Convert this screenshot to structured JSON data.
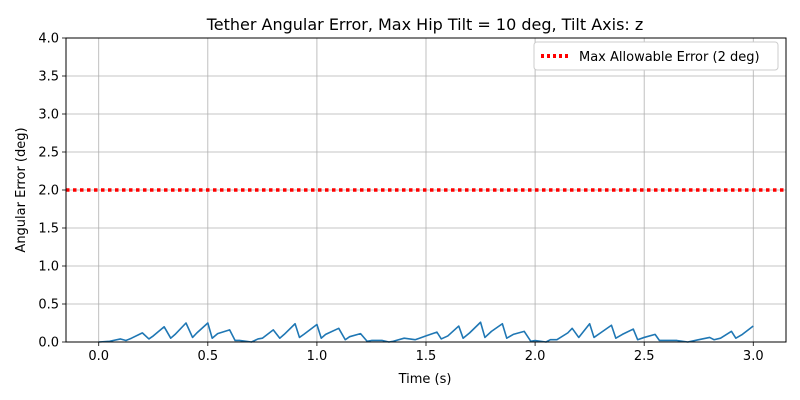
{
  "chart_data": {
    "type": "line",
    "title": "Tether Angular Error, Max Hip Tilt = 10 deg, Tilt Axis: z",
    "xlabel": "Time (s)",
    "ylabel": "Angular Error (deg)",
    "xlim": [
      -0.15,
      3.15
    ],
    "ylim": [
      0,
      4.0
    ],
    "xticks": [
      0.0,
      0.5,
      1.0,
      1.5,
      2.0,
      2.5,
      3.0
    ],
    "xtick_labels": [
      "0.0",
      "0.5",
      "1.0",
      "1.5",
      "2.0",
      "2.5",
      "3.0"
    ],
    "yticks": [
      0.0,
      0.5,
      1.0,
      1.5,
      2.0,
      2.5,
      3.0,
      3.5,
      4.0
    ],
    "ytick_labels": [
      "0.0",
      "0.5",
      "1.0",
      "1.5",
      "2.0",
      "2.5",
      "3.0",
      "3.5",
      "4.0"
    ],
    "grid": true,
    "legend_position": "top-right",
    "series": [
      {
        "color": "#1f77b4",
        "style": "solid",
        "x": [
          0.0,
          0.05,
          0.1,
          0.125,
          0.15,
          0.2,
          0.23,
          0.25,
          0.3,
          0.33,
          0.35,
          0.4,
          0.43,
          0.45,
          0.5,
          0.52,
          0.545,
          0.6,
          0.625,
          0.645,
          0.7,
          0.73,
          0.75,
          0.8,
          0.83,
          0.85,
          0.9,
          0.92,
          0.94,
          1.0,
          1.02,
          1.04,
          1.1,
          1.13,
          1.15,
          1.2,
          1.23,
          1.25,
          1.3,
          1.33,
          1.35,
          1.4,
          1.45,
          1.47,
          1.5,
          1.55,
          1.57,
          1.6,
          1.65,
          1.67,
          1.7,
          1.75,
          1.77,
          1.8,
          1.85,
          1.87,
          1.9,
          1.95,
          1.98,
          2.0,
          2.05,
          2.07,
          2.1,
          2.15,
          2.17,
          2.2,
          2.25,
          2.27,
          2.3,
          2.35,
          2.37,
          2.4,
          2.45,
          2.47,
          2.5,
          2.55,
          2.57,
          2.6,
          2.65,
          2.7,
          2.75,
          2.8,
          2.82,
          2.85,
          2.9,
          2.92,
          2.95,
          3.0
        ],
        "y": [
          0.0,
          0.01,
          0.04,
          0.02,
          0.05,
          0.12,
          0.04,
          0.08,
          0.2,
          0.05,
          0.1,
          0.25,
          0.06,
          0.12,
          0.25,
          0.05,
          0.11,
          0.16,
          0.02,
          0.02,
          0.0,
          0.04,
          0.05,
          0.16,
          0.05,
          0.1,
          0.24,
          0.06,
          0.1,
          0.23,
          0.05,
          0.1,
          0.18,
          0.03,
          0.07,
          0.11,
          0.01,
          0.02,
          0.02,
          0.0,
          0.01,
          0.05,
          0.03,
          0.05,
          0.08,
          0.13,
          0.04,
          0.08,
          0.21,
          0.05,
          0.12,
          0.26,
          0.06,
          0.14,
          0.24,
          0.05,
          0.1,
          0.14,
          0.01,
          0.02,
          0.0,
          0.03,
          0.03,
          0.12,
          0.18,
          0.06,
          0.24,
          0.06,
          0.12,
          0.22,
          0.05,
          0.1,
          0.17,
          0.03,
          0.06,
          0.1,
          0.02,
          0.02,
          0.02,
          0.0,
          0.03,
          0.06,
          0.03,
          0.05,
          0.14,
          0.05,
          0.1,
          0.21
        ]
      },
      {
        "name": "Max Allowable Error (2 deg)",
        "color": "#ff0000",
        "style": "dotted",
        "x": [
          -0.15,
          3.15
        ],
        "y": [
          2.0,
          2.0
        ]
      }
    ]
  }
}
